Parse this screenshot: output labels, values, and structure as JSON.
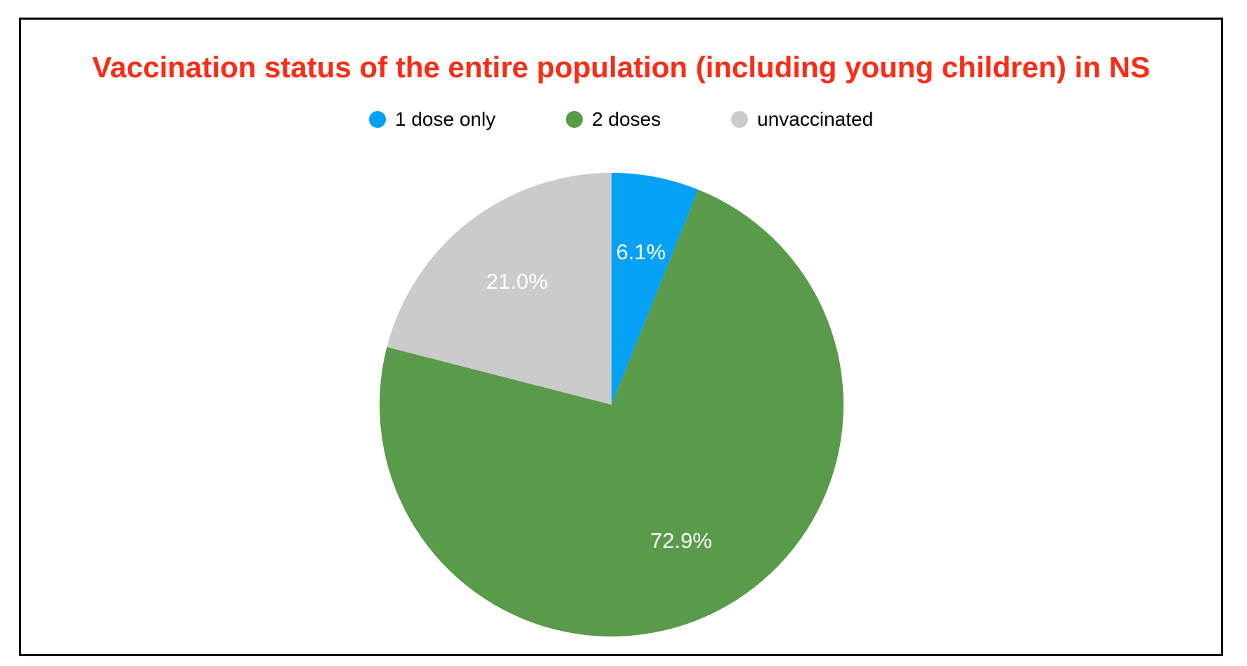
{
  "chart_data": {
    "type": "pie",
    "title": "Vaccination status of the entire population (including young children) in NS",
    "title_color": "#fb2c16",
    "slices": [
      {
        "label": "1 dose only",
        "value": 6.1,
        "display_label": "6.1%",
        "color": "#05a1f7"
      },
      {
        "label": "2 doses",
        "value": 72.9,
        "display_label": "72.9%",
        "color": "#5a9a4b"
      },
      {
        "label": "unvaccinated",
        "value": 21.0,
        "display_label": "21.0%",
        "color": "#cbcbcb"
      }
    ],
    "start_angle_deg": 0,
    "direction": "clockwise",
    "slice_label_color": "#ffffff",
    "legend_position": "top",
    "legend_text_color": "#000000",
    "background_color": "#ffffff",
    "frame_border_color": "#000000"
  }
}
